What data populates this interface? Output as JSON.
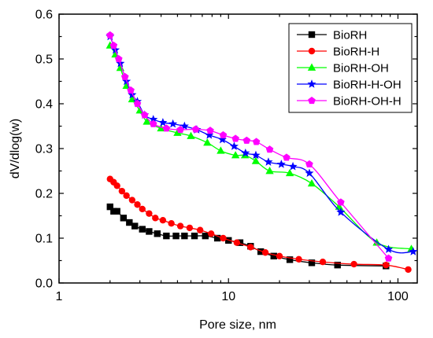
{
  "chart_data": {
    "type": "line",
    "xlabel": "Pore size, nm",
    "ylabel": "dV/dlog(w)",
    "x_scale": "log",
    "xlim": [
      1,
      130
    ],
    "ylim": [
      0,
      0.6
    ],
    "x_ticks": [
      1,
      10,
      100
    ],
    "x_tick_labels": [
      "1",
      "10",
      "100"
    ],
    "y_ticks": [
      0,
      0.1,
      0.2,
      0.3,
      0.4,
      0.5,
      0.6
    ],
    "y_tick_labels": [
      "0.0",
      "0.1",
      "0.2",
      "0.3",
      "0.4",
      "0.5",
      "0.6"
    ],
    "grid": false,
    "legend_position": "top-right",
    "series": [
      {
        "name": "BioRH",
        "color": "#000000",
        "marker": "square",
        "points": [
          [
            2.0,
            0.17
          ],
          [
            2.1,
            0.16
          ],
          [
            2.2,
            0.16
          ],
          [
            2.4,
            0.145
          ],
          [
            2.6,
            0.135
          ],
          [
            2.8,
            0.127
          ],
          [
            3.1,
            0.12
          ],
          [
            3.4,
            0.115
          ],
          [
            3.8,
            0.11
          ],
          [
            4.3,
            0.105
          ],
          [
            4.9,
            0.105
          ],
          [
            5.5,
            0.105
          ],
          [
            6.3,
            0.105
          ],
          [
            7.3,
            0.105
          ],
          [
            8.6,
            0.1
          ],
          [
            10.0,
            0.095
          ],
          [
            11.7,
            0.09
          ],
          [
            13.5,
            0.082
          ],
          [
            15.5,
            0.07
          ],
          [
            18.5,
            0.06
          ],
          [
            23,
            0.052
          ],
          [
            31,
            0.045
          ],
          [
            44,
            0.04
          ],
          [
            85,
            0.038
          ]
        ]
      },
      {
        "name": "BioRH-H",
        "color": "#ff0000",
        "marker": "circle",
        "points": [
          [
            2.0,
            0.232
          ],
          [
            2.1,
            0.225
          ],
          [
            2.2,
            0.217
          ],
          [
            2.35,
            0.205
          ],
          [
            2.5,
            0.195
          ],
          [
            2.7,
            0.185
          ],
          [
            2.9,
            0.175
          ],
          [
            3.1,
            0.165
          ],
          [
            3.4,
            0.155
          ],
          [
            3.7,
            0.145
          ],
          [
            4.1,
            0.14
          ],
          [
            4.6,
            0.133
          ],
          [
            5.2,
            0.127
          ],
          [
            5.9,
            0.123
          ],
          [
            6.8,
            0.118
          ],
          [
            7.9,
            0.11
          ],
          [
            9.3,
            0.1
          ],
          [
            11.2,
            0.09
          ],
          [
            13.5,
            0.08
          ],
          [
            16.5,
            0.068
          ],
          [
            20,
            0.06
          ],
          [
            26,
            0.053
          ],
          [
            36,
            0.047
          ],
          [
            55,
            0.042
          ],
          [
            85,
            0.04
          ],
          [
            115,
            0.03
          ]
        ]
      },
      {
        "name": "BioRH-OH",
        "color": "#00ff00",
        "marker": "triangle",
        "points": [
          [
            2.0,
            0.53
          ],
          [
            2.15,
            0.51
          ],
          [
            2.3,
            0.48
          ],
          [
            2.5,
            0.44
          ],
          [
            2.7,
            0.41
          ],
          [
            3.0,
            0.385
          ],
          [
            3.3,
            0.36
          ],
          [
            4.0,
            0.345
          ],
          [
            5.0,
            0.335
          ],
          [
            6.0,
            0.328
          ],
          [
            7.5,
            0.313
          ],
          [
            9.0,
            0.295
          ],
          [
            11.0,
            0.285
          ],
          [
            12.5,
            0.285
          ],
          [
            14.5,
            0.272
          ],
          [
            17.5,
            0.25
          ],
          [
            23,
            0.245
          ],
          [
            31,
            0.222
          ],
          [
            45,
            0.17
          ],
          [
            75,
            0.09
          ],
          [
            120,
            0.076
          ]
        ]
      },
      {
        "name": "BioRH-H-OH",
        "color": "#0000ff",
        "marker": "star",
        "points": [
          [
            2.0,
            0.55
          ],
          [
            2.15,
            0.52
          ],
          [
            2.3,
            0.49
          ],
          [
            2.5,
            0.45
          ],
          [
            2.7,
            0.42
          ],
          [
            2.9,
            0.405
          ],
          [
            3.2,
            0.375
          ],
          [
            3.6,
            0.365
          ],
          [
            4.1,
            0.358
          ],
          [
            4.7,
            0.355
          ],
          [
            5.5,
            0.35
          ],
          [
            6.5,
            0.342
          ],
          [
            7.7,
            0.33
          ],
          [
            9.2,
            0.32
          ],
          [
            10.8,
            0.305
          ],
          [
            12.6,
            0.29
          ],
          [
            14.5,
            0.285
          ],
          [
            17.2,
            0.27
          ],
          [
            20.5,
            0.265
          ],
          [
            24,
            0.26
          ],
          [
            30,
            0.245
          ],
          [
            46,
            0.158
          ],
          [
            88,
            0.075
          ],
          [
            123,
            0.07
          ]
        ]
      },
      {
        "name": "BioRH-OH-H",
        "color": "#ff00ff",
        "marker": "pentagon",
        "points": [
          [
            2.0,
            0.553
          ],
          [
            2.1,
            0.53
          ],
          [
            2.25,
            0.5
          ],
          [
            2.45,
            0.46
          ],
          [
            2.65,
            0.43
          ],
          [
            2.9,
            0.4
          ],
          [
            3.2,
            0.375
          ],
          [
            3.6,
            0.355
          ],
          [
            4.3,
            0.345
          ],
          [
            5.2,
            0.342
          ],
          [
            6.4,
            0.343
          ],
          [
            7.8,
            0.34
          ],
          [
            9.3,
            0.33
          ],
          [
            11.0,
            0.322
          ],
          [
            12.8,
            0.318
          ],
          [
            14.6,
            0.315
          ],
          [
            17.5,
            0.298
          ],
          [
            22,
            0.28
          ],
          [
            30,
            0.265
          ],
          [
            46,
            0.18
          ],
          [
            88,
            0.055
          ]
        ]
      }
    ]
  }
}
